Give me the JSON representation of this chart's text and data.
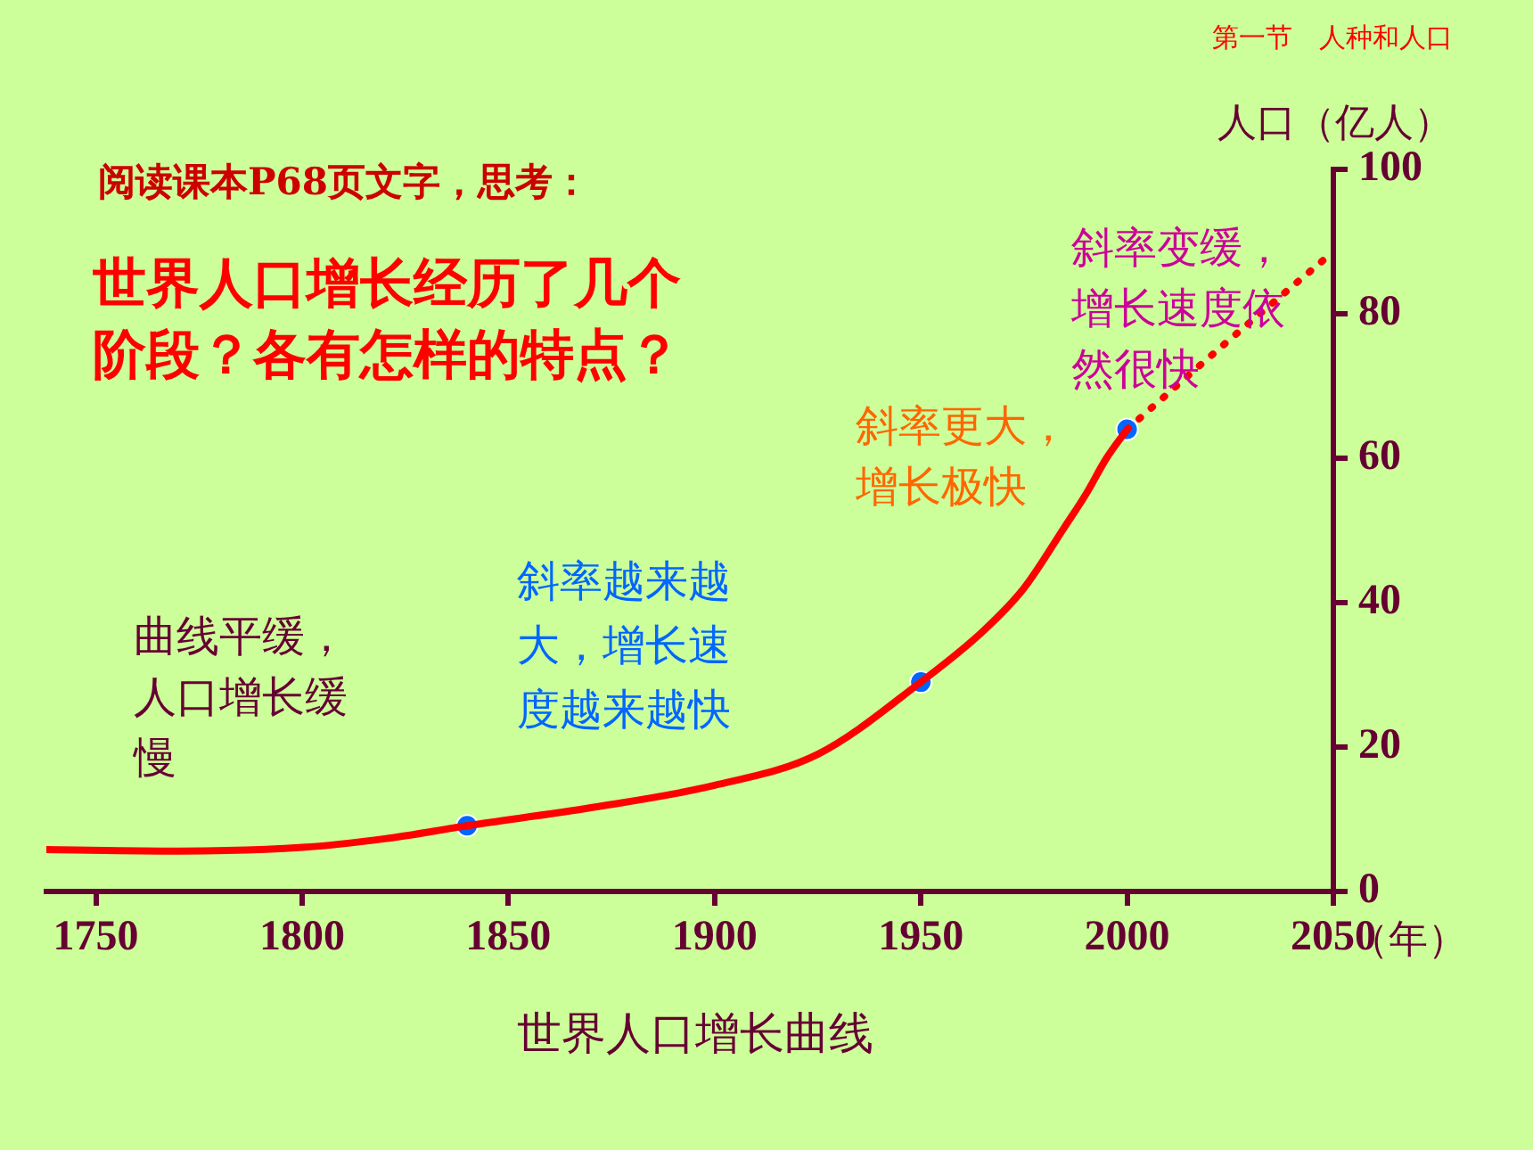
{
  "chart_data": {
    "type": "line",
    "xlabel": "（年）",
    "ylabel": "人口（亿人）",
    "xlim": [
      1738,
      2050
    ],
    "ylim": [
      0,
      100
    ],
    "xticks": [
      1750,
      1800,
      1850,
      1900,
      1950,
      2000,
      2050
    ],
    "yticks": [
      0,
      20,
      40,
      60,
      80,
      100
    ],
    "grid": false,
    "legend": false,
    "series": [
      {
        "color": "#ff0000",
        "line_style": "solid",
        "marker": "none",
        "x": [
          1738,
          1770,
          1800,
          1820,
          1840,
          1870,
          1900,
          1925,
          1950,
          1965,
          1975,
          1985,
          1990,
          1995,
          2000
        ],
        "values": [
          5.8,
          5.6,
          6.1,
          7.3,
          9.1,
          11.6,
          14.7,
          19,
          29,
          36,
          42,
          50.6,
          55,
          60,
          64
        ]
      },
      {
        "color": "#ff0000",
        "line_style": "dotted",
        "marker": "none",
        "x": [
          2000,
          2025,
          2050
        ],
        "values": [
          64,
          76.5,
          88.6
        ]
      },
      {
        "type": "scatter",
        "color": "#0066ff",
        "marker": "circle",
        "x": [
          1840,
          1950,
          2000
        ],
        "values": [
          9.1,
          29,
          64
        ]
      }
    ],
    "annotations": [
      "第一节　人种和人口",
      "阅读课本P68页文字，思考：",
      "世界人口增长经历了几个阶段？各有怎样的特点？",
      "曲线平缓，人口增长缓慢",
      "斜率越来越大，增长速度越来越快",
      "斜率更大，增长极快",
      "斜率变缓，增长速度依然很快",
      "世界人口增长曲线"
    ]
  }
}
